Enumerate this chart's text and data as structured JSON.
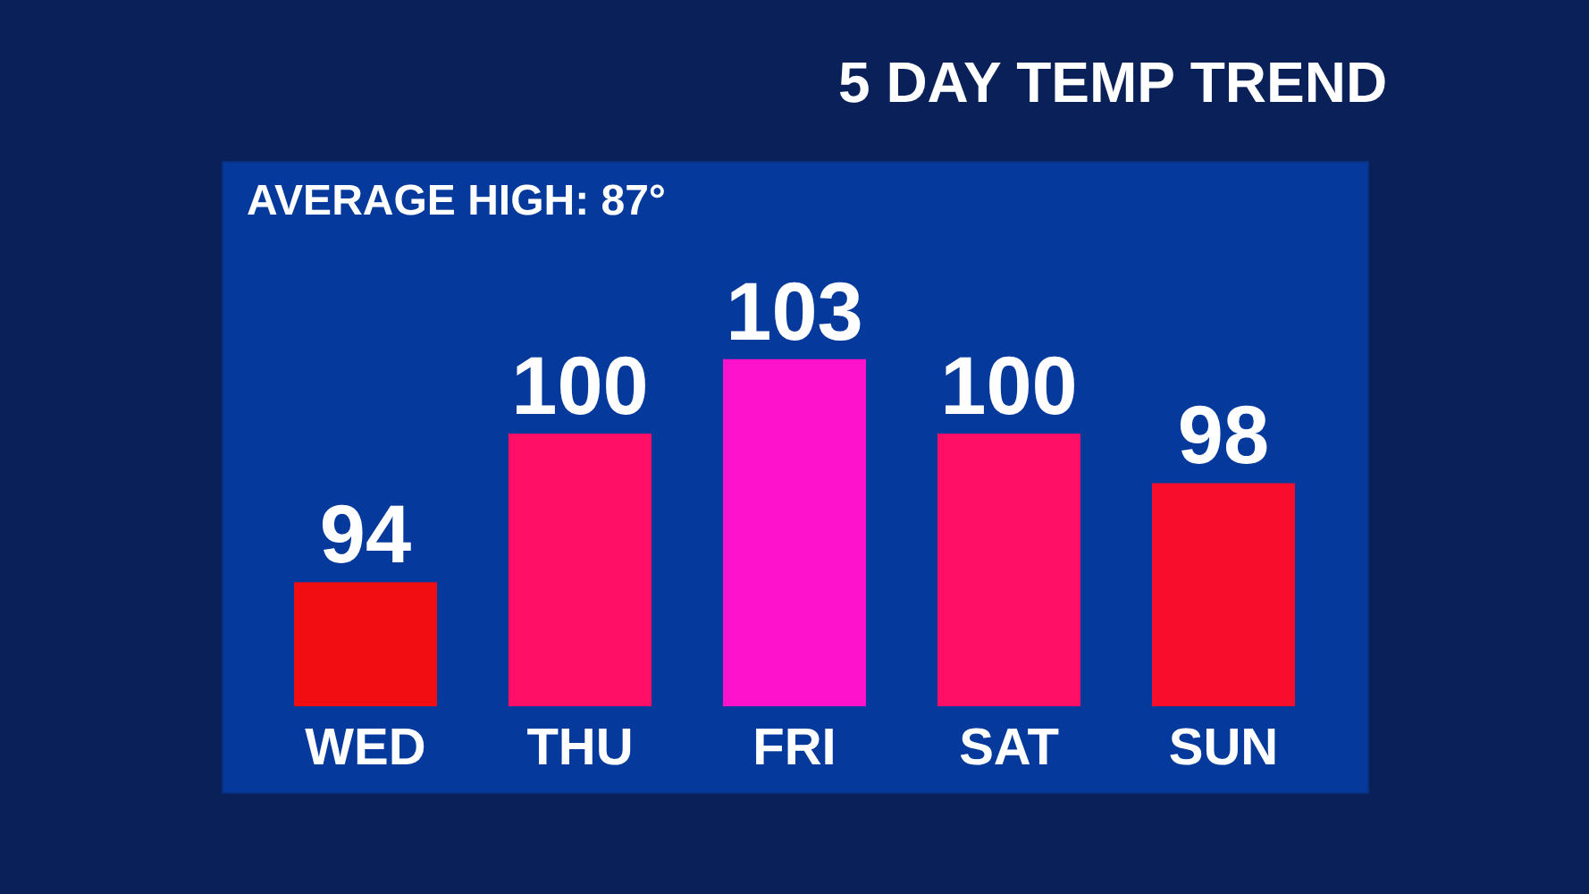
{
  "chart_data": {
    "type": "bar",
    "title": "5 DAY TEMP TREND",
    "annotations": [
      "AVERAGE HIGH: 87°"
    ],
    "categories": [
      "WED",
      "THU",
      "FRI",
      "SAT",
      "SUN"
    ],
    "values": [
      94,
      100,
      103,
      100,
      98
    ],
    "colors": [
      "#f20d12",
      "#ff1066",
      "#ff12cc",
      "#ff1066",
      "#f80e2c"
    ],
    "ylim": [
      89,
      111
    ],
    "data_labels": true,
    "tick_labels": "x"
  }
}
